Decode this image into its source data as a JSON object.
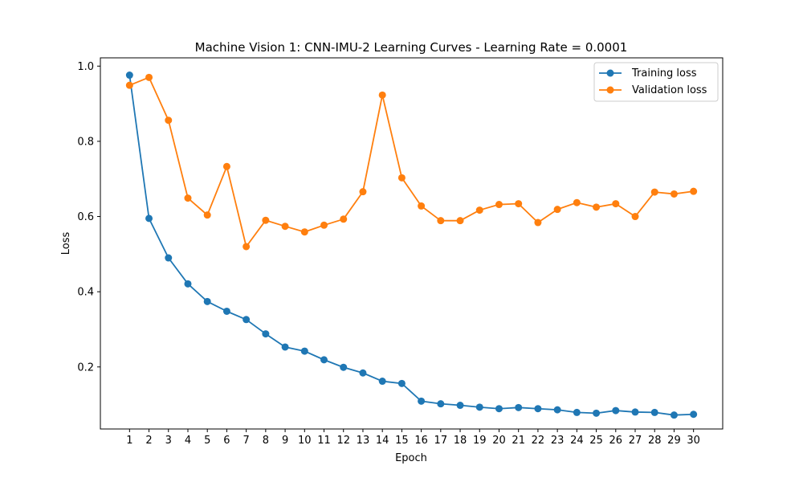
{
  "chart_data": {
    "type": "line",
    "title": "Machine Vision 1: CNN-IMU-2 Learning Curves - Learning Rate = 0.0001",
    "xlabel": "Epoch",
    "ylabel": "Loss",
    "x": [
      1,
      2,
      3,
      4,
      5,
      6,
      7,
      8,
      9,
      10,
      11,
      12,
      13,
      14,
      15,
      16,
      17,
      18,
      19,
      20,
      21,
      22,
      23,
      24,
      25,
      26,
      27,
      28,
      29,
      30
    ],
    "xlim": [
      -0.5,
      31.5
    ],
    "ylim": [
      0.035,
      1.022
    ],
    "yticks": [
      0.2,
      0.4,
      0.6,
      0.8,
      1.0
    ],
    "ytick_labels": [
      "0.2",
      "0.4",
      "0.6",
      "0.8",
      "1.0"
    ],
    "grid": false,
    "legend_position": "top-right",
    "series": [
      {
        "name": "Training loss",
        "color": "#1f77b4",
        "marker": "circle",
        "values": [
          0.976,
          0.595,
          0.49,
          0.421,
          0.374,
          0.348,
          0.326,
          0.288,
          0.253,
          0.242,
          0.219,
          0.199,
          0.184,
          0.162,
          0.156,
          0.109,
          0.102,
          0.098,
          0.093,
          0.089,
          0.092,
          0.089,
          0.086,
          0.079,
          0.077,
          0.084,
          0.08,
          0.079,
          0.072,
          0.074
        ]
      },
      {
        "name": "Validation loss",
        "color": "#ff7f0e",
        "marker": "circle",
        "values": [
          0.949,
          0.97,
          0.856,
          0.649,
          0.604,
          0.733,
          0.52,
          0.59,
          0.574,
          0.559,
          0.577,
          0.593,
          0.666,
          0.923,
          0.703,
          0.628,
          0.589,
          0.589,
          0.617,
          0.632,
          0.634,
          0.584,
          0.619,
          0.637,
          0.625,
          0.634,
          0.6,
          0.665,
          0.66,
          0.667
        ]
      }
    ]
  }
}
